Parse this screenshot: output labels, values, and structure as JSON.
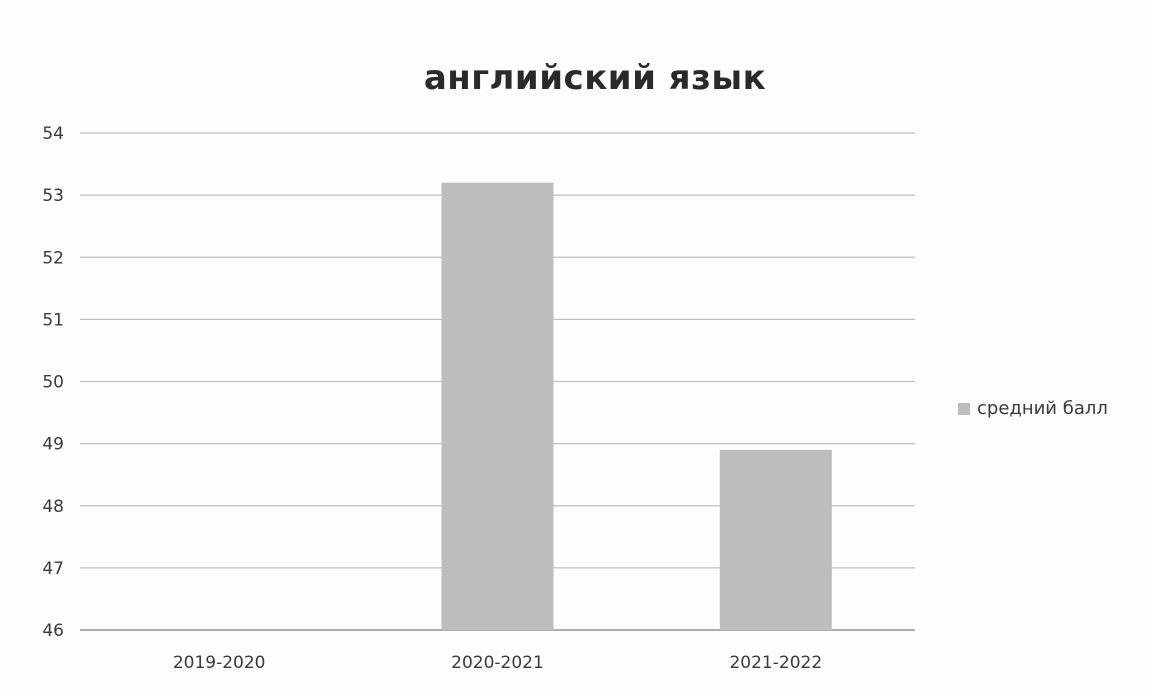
{
  "chart_data": {
    "type": "bar",
    "title": "английский язык",
    "categories": [
      "2019-2020",
      "2020-2021",
      "2021-2022"
    ],
    "series": [
      {
        "name": "средний балл",
        "values": [
          null,
          53.2,
          48.9
        ]
      }
    ],
    "yticks": [
      46,
      47,
      48,
      49,
      50,
      51,
      52,
      53,
      54
    ],
    "ylim": [
      46,
      54
    ],
    "grid": true,
    "legend_position": "right",
    "colors": {
      "bar": "#bdbdbd",
      "grid": "#bfbfbf",
      "text": "#3a3a3a"
    }
  }
}
